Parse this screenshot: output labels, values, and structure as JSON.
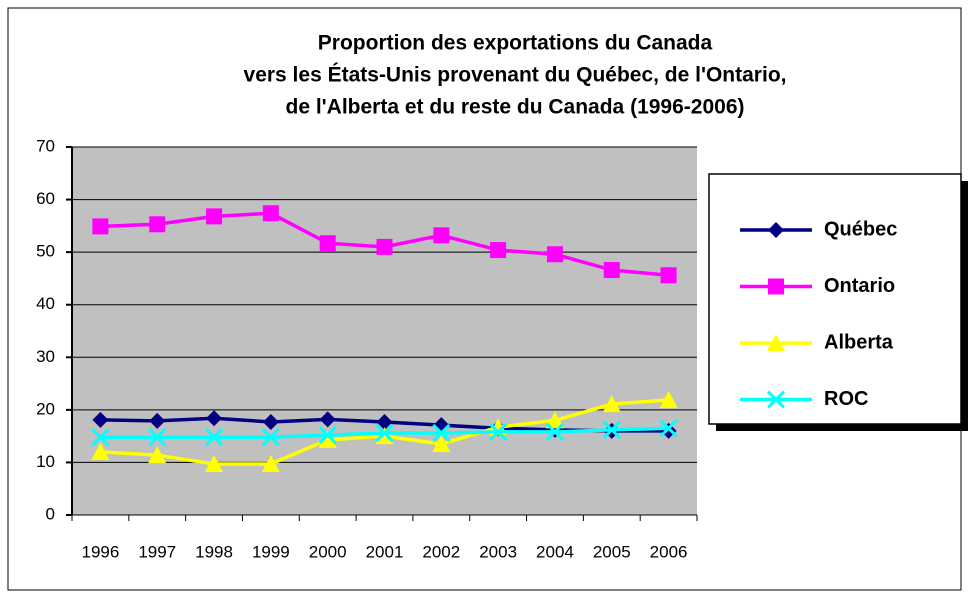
{
  "chart_data": {
    "type": "line",
    "title": [
      "Proportion des exportations du Canada",
      "vers les États-Unis provenant du Québec, de l'Ontario,",
      "de l'Alberta et du reste du Canada (1996-2006)"
    ],
    "categories": [
      "1996",
      "1997",
      "1998",
      "1999",
      "2000",
      "2001",
      "2002",
      "2003",
      "2004",
      "2005",
      "2006"
    ],
    "series": [
      {
        "name": "Québec",
        "color": "#000080",
        "marker": "diamond",
        "values": [
          18.1,
          17.9,
          18.4,
          17.7,
          18.2,
          17.7,
          17.1,
          16.5,
          16.2,
          16.0,
          16.0
        ]
      },
      {
        "name": "Ontario",
        "color": "#ff00ff",
        "marker": "square",
        "values": [
          54.9,
          55.3,
          56.8,
          57.4,
          51.7,
          51.0,
          53.2,
          50.4,
          49.6,
          46.6,
          45.6
        ]
      },
      {
        "name": "Alberta",
        "color": "#ffff00",
        "marker": "triangle",
        "values": [
          12.0,
          11.4,
          9.7,
          9.7,
          14.3,
          15.0,
          13.5,
          16.7,
          18.0,
          21.1,
          21.9
        ]
      },
      {
        "name": "ROC",
        "color": "#00ffff",
        "marker": "x",
        "values": [
          14.8,
          14.8,
          14.8,
          14.8,
          15.2,
          15.6,
          15.6,
          15.8,
          15.8,
          16.2,
          16.5
        ]
      }
    ],
    "ylim": [
      0,
      70
    ],
    "yticks": [
      0,
      10,
      20,
      30,
      40,
      50,
      60,
      70
    ],
    "grid": true,
    "legend": "right"
  }
}
